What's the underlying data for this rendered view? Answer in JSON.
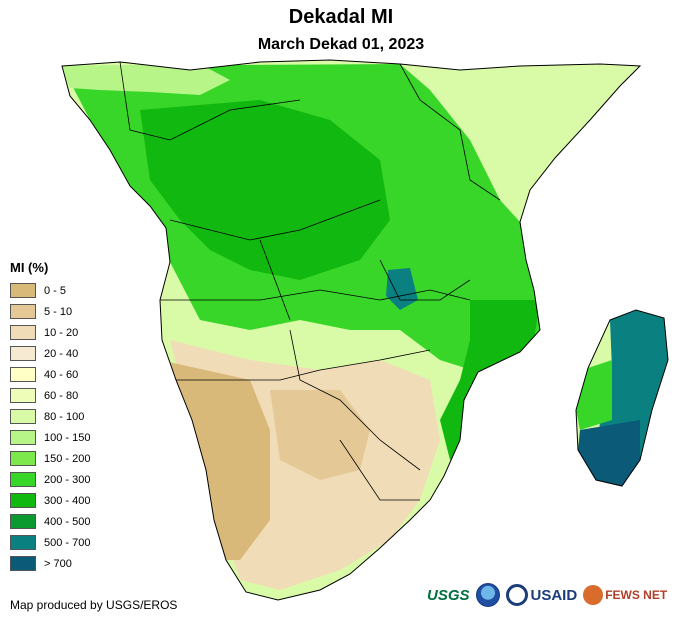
{
  "header": {
    "title": "Dekadal MI",
    "subtitle": "March Dekad 01, 2023"
  },
  "legend": {
    "title": "MI (%)",
    "items": [
      {
        "label": "0 - 5",
        "color": "#d9b97a"
      },
      {
        "label": "5 - 10",
        "color": "#e4c997"
      },
      {
        "label": "10 - 20",
        "color": "#f0dcb6"
      },
      {
        "label": "20 - 40",
        "color": "#f7ead3"
      },
      {
        "label": "40 - 60",
        "color": "#ffffc6"
      },
      {
        "label": "60 - 80",
        "color": "#eefdb7"
      },
      {
        "label": "80 - 100",
        "color": "#d9fba7"
      },
      {
        "label": "100 - 150",
        "color": "#b7f589"
      },
      {
        "label": "150 - 200",
        "color": "#7de84c"
      },
      {
        "label": "200 - 300",
        "color": "#38d628"
      },
      {
        "label": "300 - 400",
        "color": "#10b80f"
      },
      {
        "label": "400 - 500",
        "color": "#0b9a2f"
      },
      {
        "label": "500 - 700",
        "color": "#0a8080"
      },
      {
        "label": "> 700",
        "color": "#0a5a78"
      }
    ]
  },
  "footer": {
    "credit": "Map produced by USGS/EROS",
    "logos": [
      "USGS",
      "NOAA",
      "USAID",
      "FEWS NET"
    ]
  }
}
